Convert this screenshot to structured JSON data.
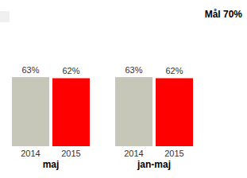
{
  "chart_data": {
    "type": "bar",
    "title": "Mål 70%",
    "categories": [
      "maj",
      "jan-maj"
    ],
    "series": [
      {
        "name": "2014",
        "color": "#c6c7b8",
        "values": [
          63,
          63
        ],
        "value_labels": [
          "63%",
          "63%"
        ]
      },
      {
        "name": "2015",
        "color": "#ff0000",
        "values": [
          62,
          62
        ],
        "value_labels": [
          "62%",
          "62%"
        ]
      }
    ],
    "ylim": [
      0,
      100
    ],
    "data_labels": true,
    "tick_labels": false
  }
}
